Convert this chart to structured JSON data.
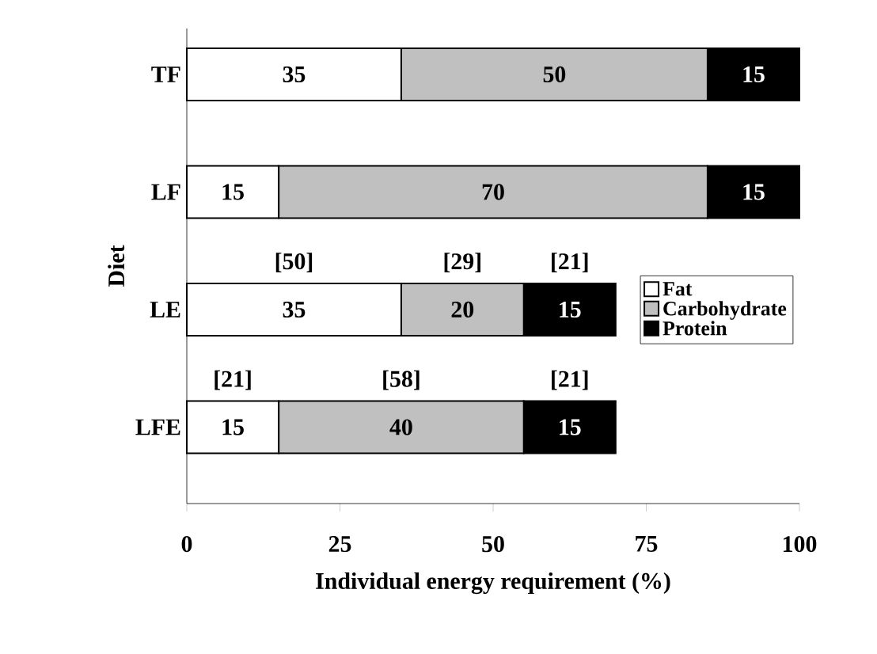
{
  "chart_data": {
    "type": "bar",
    "orientation": "horizontal",
    "stacked": true,
    "xlabel": "Individual energy requirement (%)",
    "ylabel": "Diet",
    "categories": [
      "TF",
      "LF",
      "LE",
      "LFE"
    ],
    "series": [
      {
        "name": "Fat",
        "color": "#ffffff",
        "values": [
          35,
          15,
          35,
          15
        ]
      },
      {
        "name": "Carbohydrate",
        "color": "#c0c0c0",
        "values": [
          50,
          70,
          20,
          40
        ]
      },
      {
        "name": "Protein",
        "color": "#000000",
        "values": [
          15,
          15,
          15,
          15
        ]
      }
    ],
    "xlim": [
      0,
      100
    ],
    "xticks": [
      0,
      25,
      50,
      75,
      100
    ],
    "data_labels": true,
    "legend": "right",
    "grid": false,
    "annotations": [
      "[50]",
      "[29]",
      "[21]",
      "[21]",
      "[58]",
      "[21]"
    ]
  }
}
